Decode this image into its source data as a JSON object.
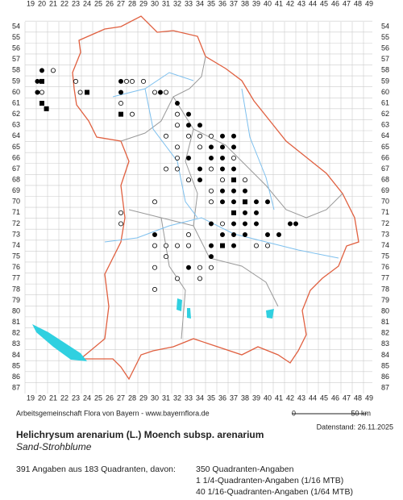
{
  "grid": {
    "columns": [
      19,
      20,
      21,
      22,
      23,
      24,
      25,
      26,
      27,
      28,
      29,
      30,
      31,
      32,
      33,
      34,
      35,
      36,
      37,
      38,
      39,
      40,
      41,
      42,
      43,
      44,
      45,
      46,
      47,
      48,
      49
    ],
    "rows": [
      54,
      55,
      56,
      57,
      58,
      59,
      60,
      61,
      62,
      63,
      64,
      65,
      66,
      67,
      68,
      69,
      70,
      71,
      72,
      73,
      74,
      75,
      76,
      77,
      78,
      79,
      80,
      81,
      82,
      83,
      84,
      85,
      86,
      87
    ]
  },
  "scale": {
    "start": "0",
    "end": "50 km"
  },
  "footer": {
    "source": "Arbeitsgemeinschaft Flora von Bayern - www.bayernflora.de",
    "date": "Datenstand: 26.11.2025"
  },
  "species": {
    "name": "Helichrysum arenarium (L.) Moench subsp. arenarium",
    "common_name": "Sand-Strohblume"
  },
  "stats": {
    "summary": "391 Angaben aus 183 Quadranten, davon:",
    "lines": [
      "350 Quadranten-Angaben",
      "1 1/4-Quadranten-Angaben (1/16 MTB)",
      "40 1/16-Quadranten-Angaben (1/64 MTB)"
    ]
  }
}
